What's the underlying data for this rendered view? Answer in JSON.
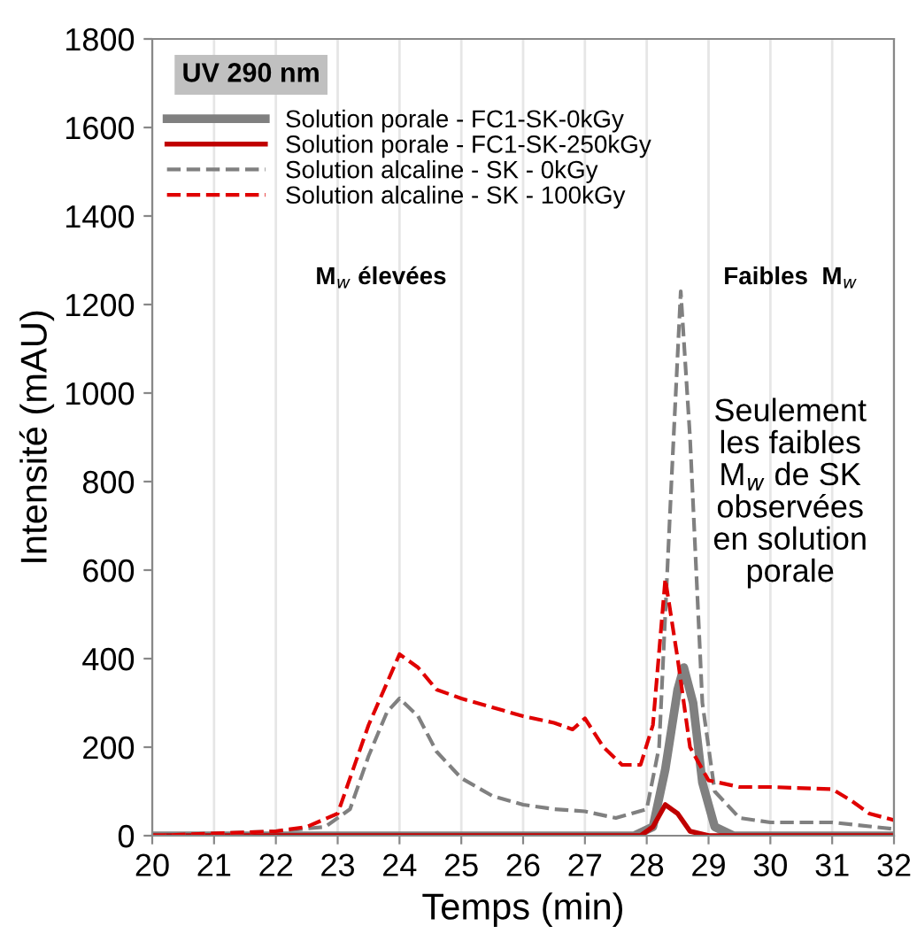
{
  "chart_data": {
    "type": "line",
    "xlabel": "Temps (min)",
    "ylabel": "Intensité (mAU)",
    "xlim": [
      20,
      32
    ],
    "xticks": [
      20,
      21,
      22,
      23,
      24,
      25,
      26,
      27,
      28,
      29,
      30,
      31,
      32
    ],
    "ylim": [
      0,
      1800
    ],
    "yticks": [
      0,
      200,
      400,
      600,
      800,
      1000,
      1200,
      1400,
      1600,
      1800
    ],
    "grid": "x",
    "legend": "top left",
    "annotations": [
      "UV 290 nm",
      "M$_{w}$ élevées",
      "Faibles  M$_{w}$",
      "Seulement\nles faibles\nM$_{w}$ de SK\nobservées\nen solution\nporale"
    ],
    "series": [
      {
        "name": "Solution porale - FC1-SK-0kGy",
        "color": "#808080",
        "line_style": "solid",
        "x": [
          20,
          27.8,
          28.1,
          28.3,
          28.5,
          28.6,
          28.75,
          28.9,
          29.1,
          29.4,
          32
        ],
        "values": [
          0,
          0,
          20,
          150,
          330,
          380,
          300,
          120,
          20,
          0,
          0
        ]
      },
      {
        "name": "Solution porale - FC1-SK-250kGy",
        "color": "#c00000",
        "line_style": "solid",
        "x": [
          20,
          27.9,
          28.1,
          28.3,
          28.5,
          28.7,
          29,
          32
        ],
        "values": [
          0,
          0,
          20,
          70,
          50,
          10,
          0,
          0
        ]
      },
      {
        "name": "Solution alcaline - SK - 0kGy",
        "color": "#808080",
        "line_style": "dashed",
        "x": [
          20,
          22,
          22.8,
          23.2,
          23.5,
          23.8,
          24,
          24.3,
          24.6,
          25,
          25.5,
          26,
          26.5,
          27,
          27.5,
          28,
          28.2,
          28.4,
          28.55,
          28.7,
          28.9,
          29.1,
          29.5,
          30,
          31,
          32
        ],
        "values": [
          0,
          10,
          20,
          60,
          180,
          280,
          310,
          270,
          190,
          130,
          90,
          70,
          60,
          55,
          40,
          60,
          200,
          800,
          1230,
          900,
          300,
          100,
          40,
          30,
          30,
          15
        ]
      },
      {
        "name": "Solution alcaline - SK - 100kGy",
        "color": "#e00000",
        "line_style": "dashed",
        "x": [
          20,
          22,
          22.5,
          23,
          23.5,
          24,
          24.3,
          24.6,
          25,
          25.5,
          26,
          26.5,
          26.8,
          27,
          27.3,
          27.6,
          27.9,
          28.1,
          28.3,
          28.5,
          28.7,
          29,
          29.5,
          30,
          31,
          31.3,
          31.6,
          32
        ],
        "values": [
          0,
          10,
          20,
          50,
          250,
          410,
          380,
          330,
          310,
          290,
          270,
          255,
          240,
          265,
          200,
          160,
          160,
          250,
          580,
          400,
          200,
          125,
          110,
          110,
          105,
          80,
          50,
          35
        ]
      }
    ]
  }
}
